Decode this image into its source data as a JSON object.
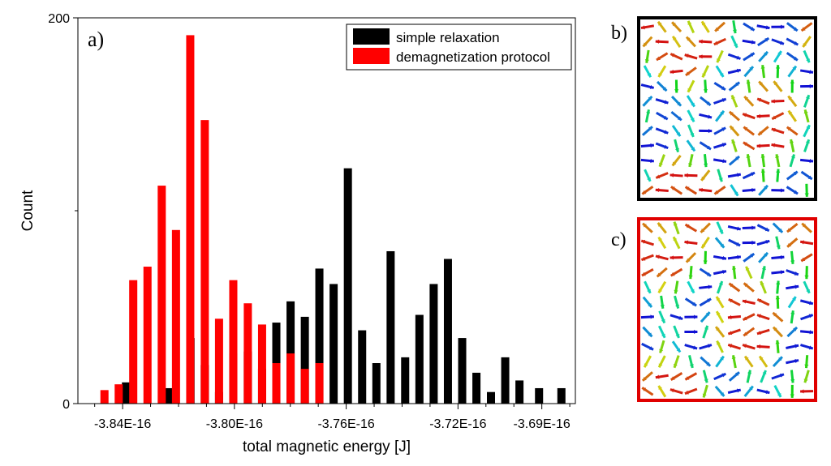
{
  "chart_data": {
    "type": "bar",
    "panel_label": "a)",
    "xlabel": "total magnetic energy [J]",
    "ylabel": "Count",
    "ylim": [
      0,
      200
    ],
    "xlim": [
      -3.856e-16,
      -3.678e-16
    ],
    "y_tick_labels": [
      {
        "value": 0,
        "label": "0"
      },
      {
        "value": 200,
        "label": "200"
      }
    ],
    "y_minor_ticks": [
      100
    ],
    "x_ticks": [
      {
        "value": -3.84e-16,
        "label": "-3.84E-16"
      },
      {
        "value": -3.8e-16,
        "label": "-3.80E-16"
      },
      {
        "value": -3.76e-16,
        "label": "-3.76E-16"
      },
      {
        "value": -3.72e-16,
        "label": "-3.72E-16"
      },
      {
        "value": -3.69e-16,
        "label": "-3.69E-16"
      }
    ],
    "x_minor_ticks": [
      -3.85e-16,
      -3.83e-16,
      -3.82e-16,
      -3.81e-16,
      -3.79e-16,
      -3.78e-16,
      -3.77e-16,
      -3.75e-16,
      -3.74e-16,
      -3.73e-16,
      -3.71e-16,
      -3.7e-16,
      -3.68e-16
    ],
    "bin_width": 2.4e-19,
    "legend_position": "top-right",
    "series": [
      {
        "name": "simple relaxation",
        "color": "#000000",
        "x": [
          -3.8388e-16,
          -3.8236e-16,
          -3.8157e-16,
          -3.8106e-16,
          -3.8055e-16,
          -3.8004e-16,
          -3.7952e-16,
          -3.7901e-16,
          -3.785e-16,
          -3.7799e-16,
          -3.7748e-16,
          -3.7696e-16,
          -3.7645e-16,
          -3.7594e-16,
          -3.7543e-16,
          -3.7492e-16,
          -3.7441e-16,
          -3.7389e-16,
          -3.7338e-16,
          -3.7287e-16,
          -3.7236e-16,
          -3.7185e-16,
          -3.7134e-16,
          -3.7082e-16,
          -3.7031e-16,
          -3.698e-16,
          -3.691e-16,
          -3.683e-16
        ],
        "values": [
          11,
          8,
          34,
          20,
          6,
          26,
          27,
          18,
          42,
          53,
          45,
          70,
          62,
          122,
          38,
          21,
          79,
          24,
          46,
          62,
          75,
          34,
          16,
          6,
          24,
          12,
          8,
          8
        ]
      },
      {
        "name": "demagnetization protocol",
        "color": "#ff0000",
        "x": [
          -3.8465e-16,
          -3.8414e-16,
          -3.8362e-16,
          -3.8311e-16,
          -3.826e-16,
          -3.8209e-16,
          -3.8158e-16,
          -3.8106e-16,
          -3.8055e-16,
          -3.8004e-16,
          -3.7952e-16,
          -3.7901e-16,
          -3.785e-16,
          -3.7799e-16,
          -3.7748e-16,
          -3.7696e-16
        ],
        "values": [
          7,
          10,
          64,
          71,
          113,
          90,
          191,
          147,
          44,
          64,
          52,
          41,
          21,
          26,
          18,
          21
        ]
      }
    ]
  },
  "panels": {
    "b": {
      "label": "b)"
    },
    "c": {
      "label": "c)"
    }
  }
}
